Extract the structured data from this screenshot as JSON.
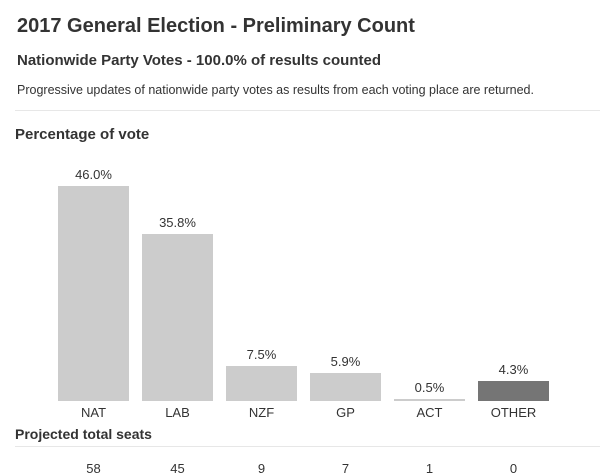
{
  "header": {
    "title": "2017 General Election - Preliminary Count",
    "subtitle": "Nationwide Party Votes - 100.0% of results counted",
    "description": "Progressive updates of nationwide party votes as results from each voting place are returned."
  },
  "chart_data": {
    "type": "bar",
    "title": "Percentage of vote",
    "categories": [
      "NAT",
      "LAB",
      "NZF",
      "GP",
      "ACT",
      "OTHER"
    ],
    "values": [
      46.0,
      35.8,
      7.5,
      5.9,
      0.5,
      4.3
    ],
    "value_labels": [
      "46.0%",
      "35.8%",
      "7.5%",
      "5.9%",
      "0.5%",
      "4.3%"
    ],
    "bar_colors": [
      "#cccccc",
      "#cccccc",
      "#cccccc",
      "#cccccc",
      "#cccccc",
      "#757575"
    ],
    "ylim": [
      0,
      46
    ],
    "grid": false,
    "legend": "none",
    "seats": {
      "heading": "Projected total seats",
      "values": [
        "58",
        "45",
        "9",
        "7",
        "1",
        "0"
      ]
    }
  },
  "colors": {
    "text": "#333333",
    "bar_default": "#cccccc",
    "bar_highlight": "#757575",
    "divider": "#e7e7e7",
    "background": "#ffffff"
  }
}
